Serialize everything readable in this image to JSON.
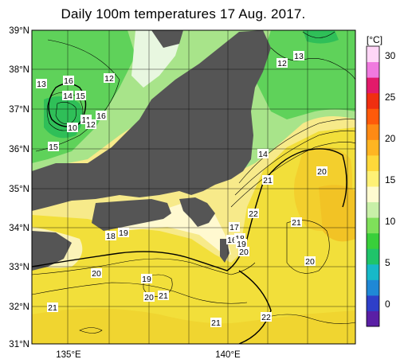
{
  "title": "Daily 100m temperatures 17 Aug. 2017.",
  "y_axis": {
    "ticks": [
      "39°N",
      "38°N",
      "37°N",
      "36°N",
      "35°N",
      "34°N",
      "33°N",
      "32°N",
      "31°N"
    ]
  },
  "x_axis": {
    "ticks": [
      "135°E",
      "140°E"
    ]
  },
  "colorbar": {
    "unit": "[°C]",
    "ticks": [
      "30",
      "25",
      "20",
      "15",
      "10",
      "5",
      "0"
    ],
    "range": [
      -3,
      31
    ],
    "colors": [
      "#5a1fa5",
      "#2e3fc9",
      "#1f88d6",
      "#17b9c8",
      "#1fc46a",
      "#39cf3a",
      "#7fe05a",
      "#c8f0a8",
      "#fffbd0",
      "#fff176",
      "#ffd83a",
      "#ffb522",
      "#ff8a14",
      "#ff5a0a",
      "#f02f10",
      "#e21a6a",
      "#f07adf",
      "#ffd6f7"
    ]
  },
  "land_color": "#555555",
  "contour_labels": [
    {
      "text": "13",
      "id": "a"
    },
    {
      "text": "16",
      "id": "b"
    },
    {
      "text": "12",
      "id": "c"
    },
    {
      "text": "14",
      "id": "d"
    },
    {
      "text": "15",
      "id": "e"
    },
    {
      "text": "16",
      "id": "f"
    },
    {
      "text": "11",
      "id": "g"
    },
    {
      "text": "12",
      "id": "h"
    },
    {
      "text": "10",
      "id": "i"
    },
    {
      "text": "15",
      "id": "j"
    },
    {
      "text": "12",
      "id": "k"
    },
    {
      "text": "13",
      "id": "l"
    },
    {
      "text": "14",
      "id": "m"
    },
    {
      "text": "20",
      "id": "n"
    },
    {
      "text": "21",
      "id": "o"
    },
    {
      "text": "22",
      "id": "p"
    },
    {
      "text": "21",
      "id": "q"
    },
    {
      "text": "17",
      "id": "r"
    },
    {
      "text": "16",
      "id": "s"
    },
    {
      "text": "18",
      "id": "t"
    },
    {
      "text": "19",
      "id": "u"
    },
    {
      "text": "20",
      "id": "v"
    },
    {
      "text": "20",
      "id": "w"
    },
    {
      "text": "18",
      "id": "x"
    },
    {
      "text": "19",
      "id": "y"
    },
    {
      "text": "20",
      "id": "z"
    },
    {
      "text": "19",
      "id": "aa"
    },
    {
      "text": "20",
      "id": "ab"
    },
    {
      "text": "21",
      "id": "ac"
    },
    {
      "text": "21",
      "id": "ad"
    },
    {
      "text": "21",
      "id": "ae"
    },
    {
      "text": "22",
      "id": "af"
    }
  ]
}
